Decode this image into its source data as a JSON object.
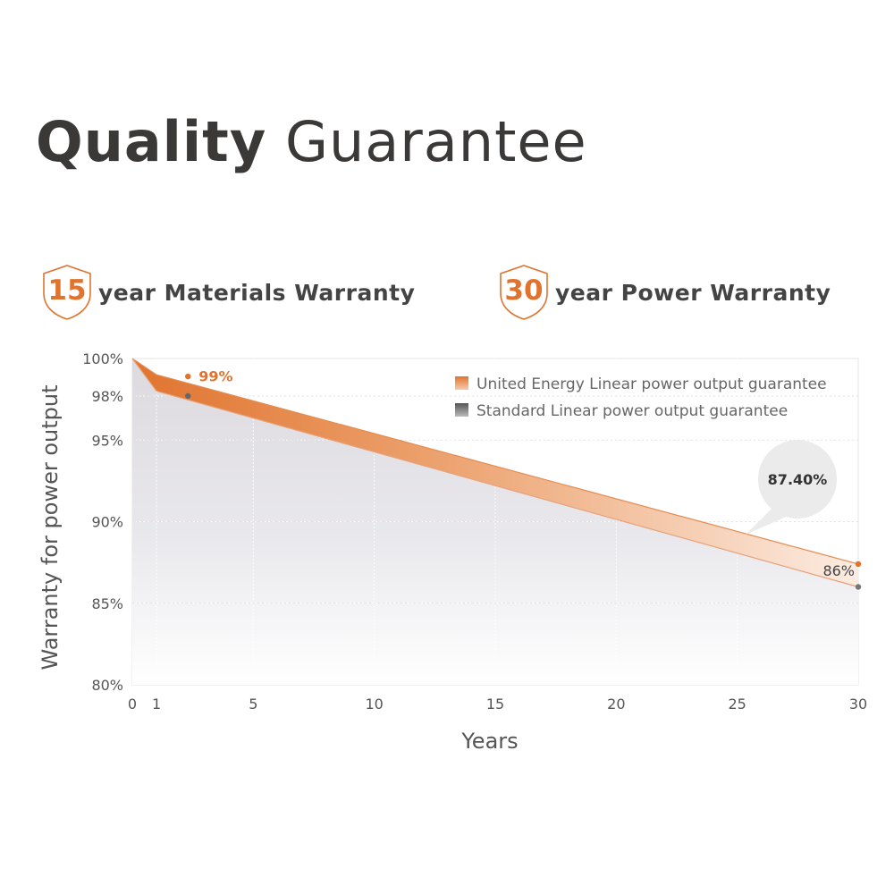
{
  "heading": {
    "bold": "Quality",
    "light": "Guarantee"
  },
  "warranties": [
    {
      "years": "15",
      "text": "year Materials Warranty"
    },
    {
      "years": "30",
      "text": "year Power Warranty"
    }
  ],
  "colors": {
    "accent": "#e0742f",
    "standard": "#777777",
    "text": "#3b3838"
  },
  "chart_data": {
    "type": "area",
    "xlabel": "Years",
    "ylabel": "Warranty for power output",
    "xlim": [
      0,
      30
    ],
    "ylim": [
      80,
      100
    ],
    "x_ticks": [
      0,
      1,
      5,
      10,
      15,
      20,
      25,
      30
    ],
    "y_ticks": [
      {
        "value": 100,
        "label": "100%"
      },
      {
        "value": 97.7,
        "label": "98%"
      },
      {
        "value": 95,
        "label": "95%"
      },
      {
        "value": 90,
        "label": "90%"
      },
      {
        "value": 85,
        "label": "85%"
      },
      {
        "value": 80,
        "label": "80%"
      }
    ],
    "series": [
      {
        "name": "United Energy Linear power output guarantee",
        "x": [
          0,
          1,
          30
        ],
        "y": [
          100,
          99,
          87.4
        ]
      },
      {
        "name": "Standard Linear power output guarantee",
        "x": [
          0,
          1,
          30
        ],
        "y": [
          100,
          98,
          86
        ]
      }
    ],
    "annotations": [
      {
        "text": "99%",
        "x": 2.3,
        "y": 98.7
      },
      {
        "text": "87.40%",
        "x": 30,
        "y": 87.4
      },
      {
        "text": "86%",
        "x": 30,
        "y": 86.4
      }
    ],
    "legend": "top-right",
    "grid": true
  }
}
